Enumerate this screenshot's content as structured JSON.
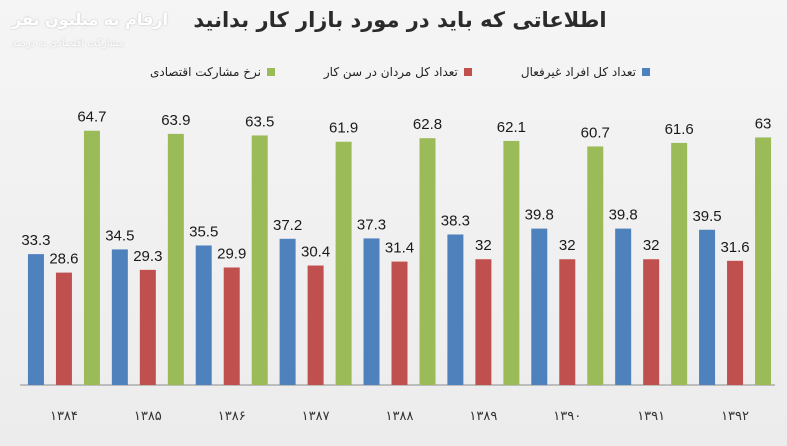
{
  "header": {
    "title": "اطلاعاتی که باید در مورد بازار کار بدانید",
    "watermark_line1": "ارقام به میلیون نفر",
    "watermark_line2": "مشارکت اقتصادی به درصد"
  },
  "chart_data": {
    "type": "bar",
    "title": "اطلاعاتی که باید در مورد بازار کار بدانید",
    "xlabel": "",
    "ylabel": "",
    "categories": [
      "۱۳۸۴",
      "۱۳۸۵",
      "۱۳۸۶",
      "۱۳۸۷",
      "۱۳۸۸",
      "۱۳۸۹",
      "۱۳۹۰",
      "۱۳۹۱",
      "۱۳۹۲"
    ],
    "series": [
      {
        "name": "تعداد کل افراد غیرفعال",
        "color": "#4f81bd",
        "values": [
          33.3,
          34.5,
          35.5,
          37.2,
          37.3,
          38.3,
          39.8,
          39.8,
          39.5
        ]
      },
      {
        "name": "تعداد کل مردان در سن کار",
        "color": "#c0504d",
        "values": [
          28.6,
          29.3,
          29.9,
          30.4,
          31.4,
          32,
          32,
          32,
          31.6
        ]
      },
      {
        "name": "نرخ مشارکت اقتصادی",
        "color": "#9bbb59",
        "values": [
          64.7,
          63.9,
          63.5,
          61.9,
          62.8,
          62.1,
          60.7,
          61.6,
          63
        ]
      }
    ],
    "ylim": [
      0,
      70
    ],
    "grid": false,
    "legend_position": "top"
  }
}
